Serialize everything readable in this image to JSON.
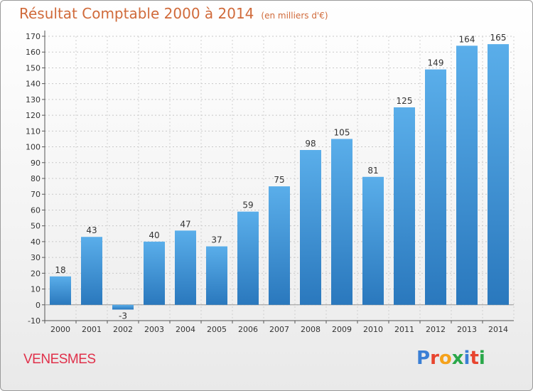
{
  "page": {
    "title": "Résultat Comptable 2000 à 2014",
    "subtitle": "(en milliers d'€)",
    "commune": "VENESMES",
    "logo_text": "Proxiti",
    "logo_colors": [
      "#3a7fd5",
      "#e8442e",
      "#f5a21b",
      "#2aa84a",
      "#3a7fd5",
      "#e8442e",
      "#2aa84a"
    ]
  },
  "chart_data": {
    "type": "bar",
    "categories": [
      "2000",
      "2001",
      "2002",
      "2003",
      "2004",
      "2005",
      "2006",
      "2007",
      "2008",
      "2009",
      "2010",
      "2011",
      "2012",
      "2013",
      "2014"
    ],
    "values": [
      18,
      43,
      -3,
      40,
      47,
      37,
      59,
      75,
      98,
      105,
      81,
      125,
      149,
      164,
      165
    ],
    "title": "Résultat Comptable 2000 à 2014",
    "xlabel": "",
    "ylabel": "",
    "ylim": [
      -10,
      170
    ],
    "yticks": [
      -10,
      0,
      10,
      20,
      30,
      40,
      50,
      60,
      70,
      80,
      90,
      100,
      110,
      120,
      130,
      140,
      150,
      160,
      170
    ],
    "grid": true,
    "bar_color": "#3a8fd8"
  }
}
